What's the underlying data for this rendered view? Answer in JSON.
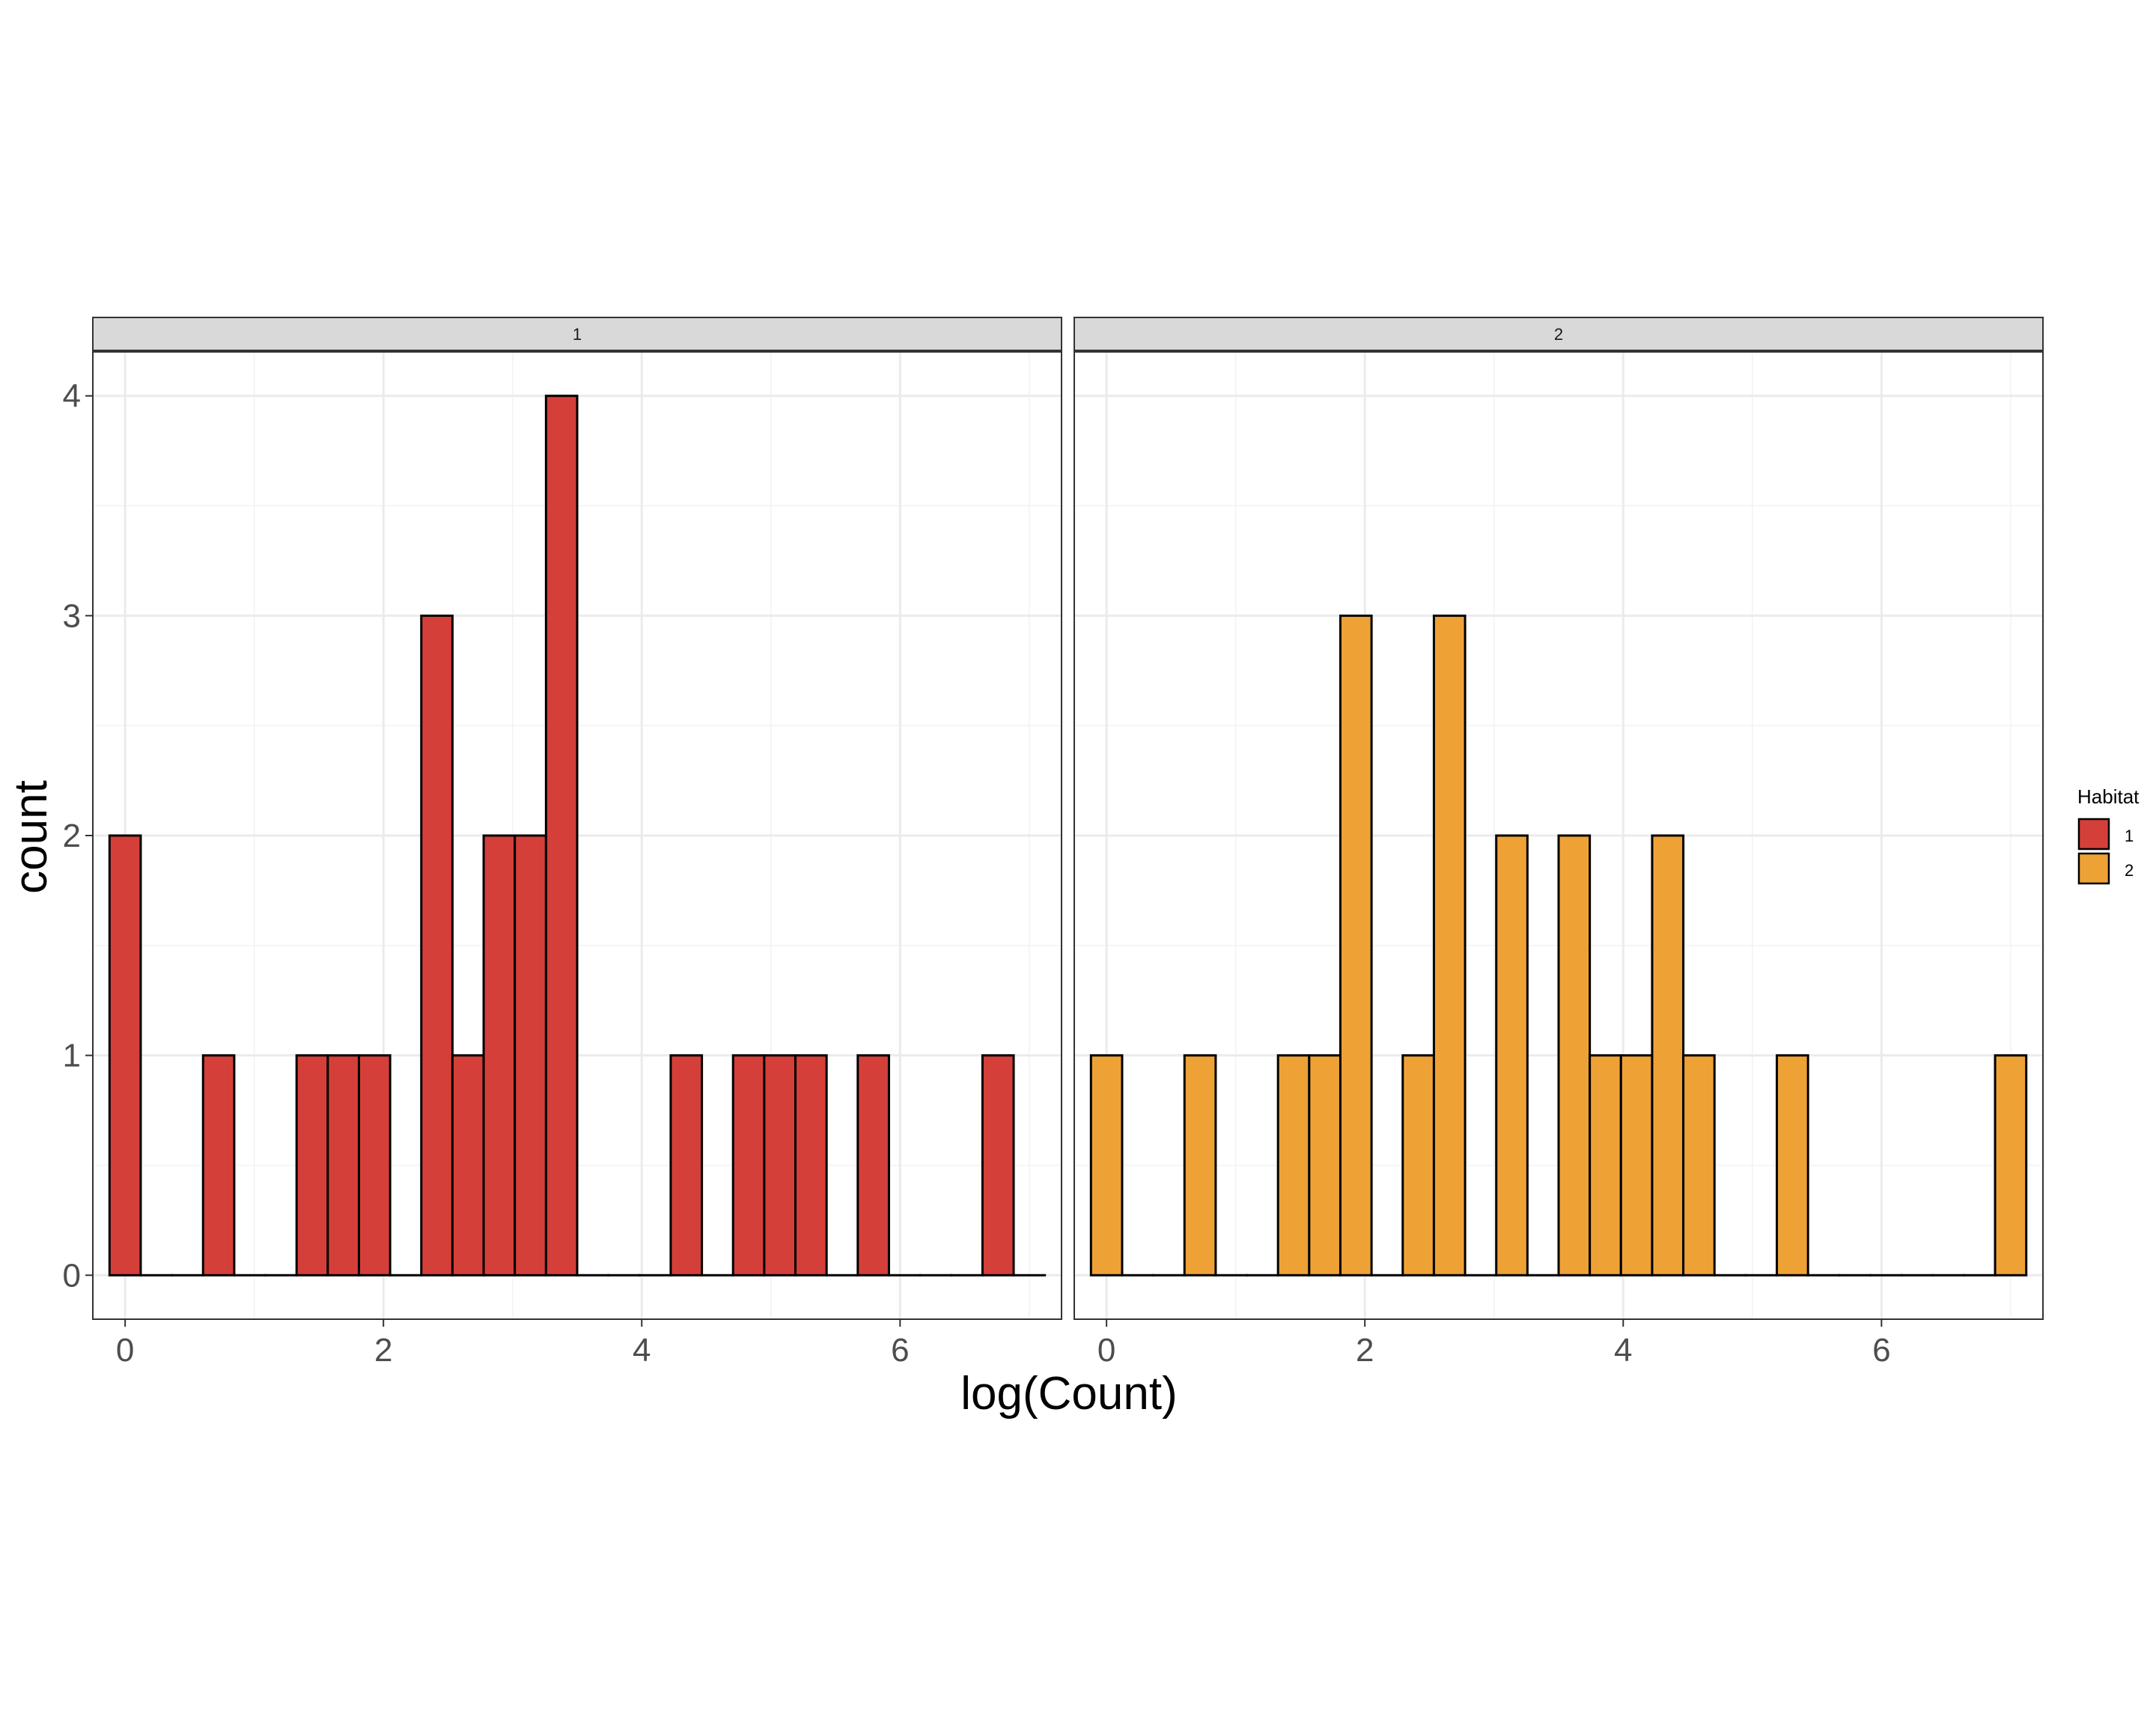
{
  "chart_data": {
    "type": "bar",
    "subtype": "faceted histogram",
    "xlabel": "log(Count)",
    "ylabel": "count",
    "xlim": [
      -0.25,
      7.25
    ],
    "ylim": [
      -0.2,
      4.2
    ],
    "x_ticks": [
      0,
      2,
      4,
      6
    ],
    "y_ticks": [
      0,
      1,
      2,
      3,
      4
    ],
    "bin_width": 0.2413793,
    "bin_start": -0.1206897,
    "grid": true,
    "legend": {
      "title": "Habitat",
      "position": "right",
      "entries": [
        {
          "label": "1",
          "color": "#D43F3A"
        },
        {
          "label": "2",
          "color": "#EEA236"
        }
      ]
    },
    "facets": [
      {
        "strip_label": "1",
        "color": "#D43F3A",
        "counts": [
          2,
          0,
          0,
          1,
          0,
          0,
          1,
          1,
          1,
          0,
          3,
          1,
          2,
          2,
          4,
          0,
          0,
          0,
          1,
          0,
          1,
          1,
          1,
          0,
          1,
          0,
          0,
          0,
          1,
          0
        ]
      },
      {
        "strip_label": "2",
        "color": "#EEA236",
        "counts": [
          1,
          0,
          0,
          1,
          0,
          0,
          1,
          1,
          3,
          0,
          1,
          3,
          0,
          2,
          0,
          2,
          1,
          1,
          2,
          1,
          0,
          0,
          1,
          0,
          0,
          0,
          0,
          0,
          0,
          1
        ]
      }
    ]
  }
}
